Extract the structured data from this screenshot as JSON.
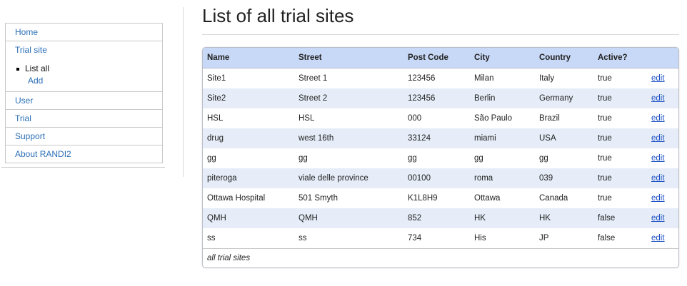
{
  "sidebar": {
    "items": [
      {
        "label": "Home"
      },
      {
        "label": "Trial site"
      },
      {
        "label": "User"
      },
      {
        "label": "Trial"
      },
      {
        "label": "Support"
      },
      {
        "label": "About RANDI2"
      }
    ],
    "subitems": [
      {
        "label": "List all"
      },
      {
        "label": "Add"
      }
    ]
  },
  "main": {
    "title": "List of all trial sites",
    "table": {
      "headers": [
        "Name",
        "Street",
        "Post Code",
        "City",
        "Country",
        "Active?",
        ""
      ],
      "edit_label": "edit",
      "caption": "all trial sites",
      "rows": [
        [
          "Site1",
          "Street 1",
          "123456",
          "Milan",
          "Italy",
          "true"
        ],
        [
          "Site2",
          "Street 2",
          "123456",
          "Berlin",
          "Germany",
          "true"
        ],
        [
          "HSL",
          "HSL",
          "000",
          "São Paulo",
          "Brazil",
          "true"
        ],
        [
          "drug",
          "west 16th",
          "33124",
          "miami",
          "USA",
          "true"
        ],
        [
          "gg",
          "gg",
          "gg",
          "gg",
          "gg",
          "true"
        ],
        [
          "piteroga",
          "viale delle province",
          "00100",
          "roma",
          "039",
          "true"
        ],
        [
          "Ottawa Hospital",
          "501 Smyth",
          "K1L8H9",
          "Ottawa",
          "Canada",
          "true"
        ],
        [
          "QMH",
          "QMH",
          "852",
          "HK",
          "HK",
          "false"
        ],
        [
          "ss",
          "ss",
          "734",
          "His",
          "JP",
          "false"
        ]
      ]
    }
  },
  "colors": {
    "link": "#2b6fb6",
    "table_header_bg": "#c8d9f7",
    "row_alt_bg": "#e6edf8",
    "edit_link": "#1a4fc4"
  }
}
